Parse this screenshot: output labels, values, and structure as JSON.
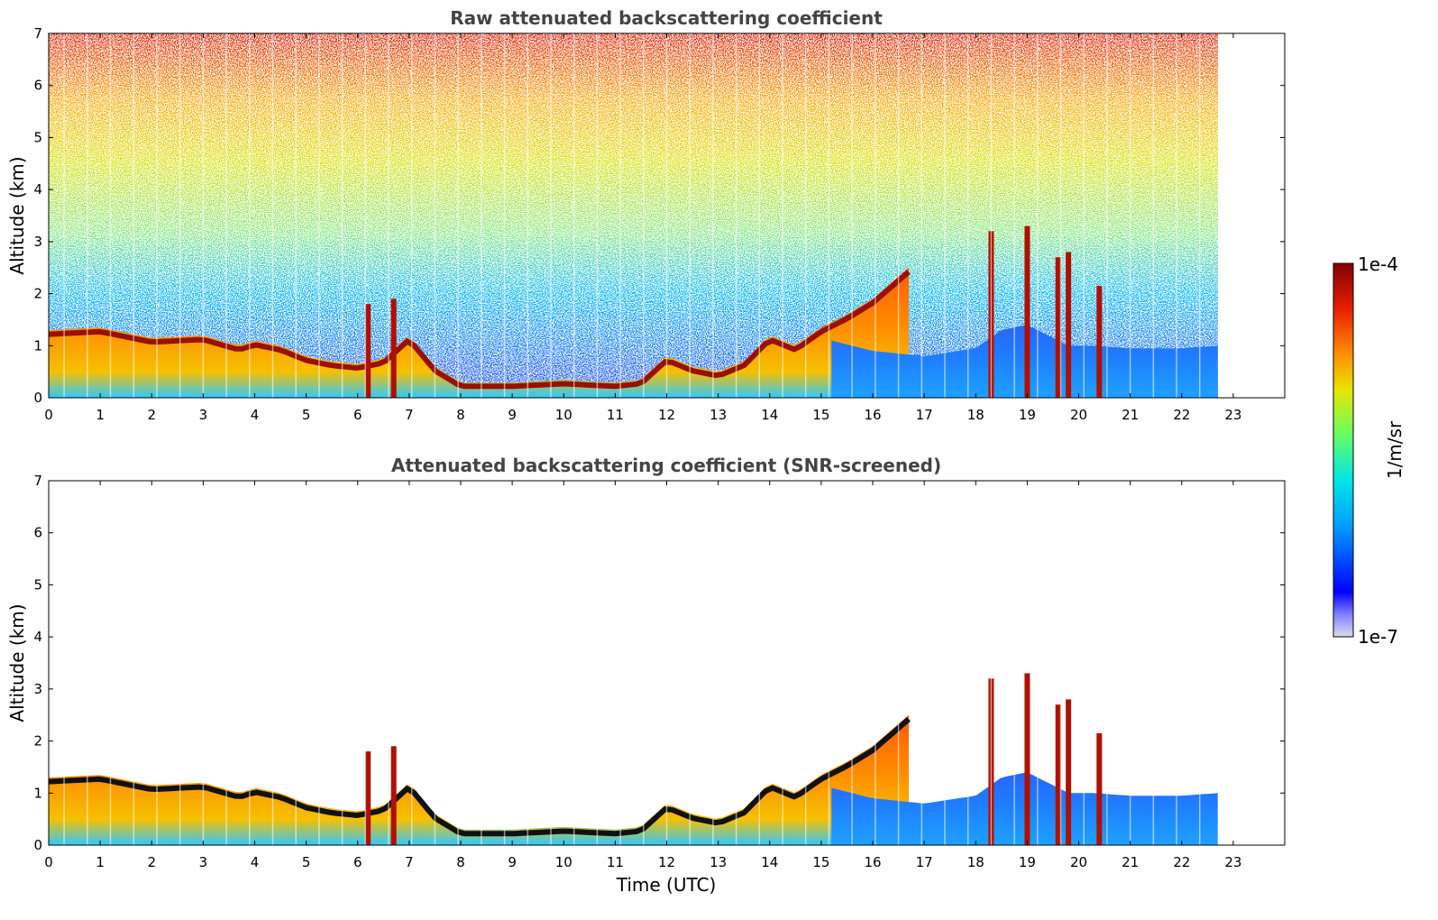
{
  "chart_data": [
    {
      "type": "heatmap",
      "title": "Raw attenuated backscattering coefficient",
      "xlabel": "",
      "ylabel": "Altitude (km)",
      "xlim": [
        0,
        24
      ],
      "ylim": [
        0,
        7
      ],
      "xticks": [
        "0",
        "1",
        "2",
        "3",
        "4",
        "5",
        "6",
        "7",
        "8",
        "9",
        "10",
        "11",
        "12",
        "13",
        "14",
        "15",
        "16",
        "17",
        "18",
        "19",
        "20",
        "21",
        "22",
        "23"
      ],
      "yticks": [
        "0",
        "1",
        "2",
        "3",
        "4",
        "5",
        "6",
        "7"
      ],
      "data_end_time": 22.7,
      "boundary_layer_top_km": [
        {
          "x": 0,
          "y": 1.3
        },
        {
          "x": 1,
          "y": 1.35
        },
        {
          "x": 2,
          "y": 1.15
        },
        {
          "x": 3,
          "y": 1.2
        },
        {
          "x": 3.7,
          "y": 1.0
        },
        {
          "x": 4,
          "y": 1.1
        },
        {
          "x": 4.5,
          "y": 1.0
        },
        {
          "x": 5,
          "y": 0.8
        },
        {
          "x": 5.5,
          "y": 0.7
        },
        {
          "x": 6,
          "y": 0.65
        },
        {
          "x": 6.5,
          "y": 0.75
        },
        {
          "x": 7,
          "y": 1.2
        },
        {
          "x": 7.5,
          "y": 0.6
        },
        {
          "x": 8,
          "y": 0.3
        },
        {
          "x": 9,
          "y": 0.3
        },
        {
          "x": 10,
          "y": 0.35
        },
        {
          "x": 11,
          "y": 0.3
        },
        {
          "x": 11.5,
          "y": 0.35
        },
        {
          "x": 12,
          "y": 0.8
        },
        {
          "x": 12.5,
          "y": 0.6
        },
        {
          "x": 13,
          "y": 0.5
        },
        {
          "x": 13.5,
          "y": 0.7
        },
        {
          "x": 14,
          "y": 1.2
        },
        {
          "x": 14.5,
          "y": 1.0
        },
        {
          "x": 15,
          "y": 1.35
        },
        {
          "x": 15.5,
          "y": 1.6
        },
        {
          "x": 16,
          "y": 1.9
        },
        {
          "x": 16.7,
          "y": 2.5
        }
      ],
      "aerosol_layer_top_km": [
        {
          "x": 15.2,
          "y": 1.1
        },
        {
          "x": 16,
          "y": 0.9
        },
        {
          "x": 17,
          "y": 0.8
        },
        {
          "x": 18,
          "y": 0.95
        },
        {
          "x": 18.5,
          "y": 1.3
        },
        {
          "x": 19,
          "y": 1.4
        },
        {
          "x": 19.8,
          "y": 1.0
        },
        {
          "x": 20.3,
          "y": 1.0
        },
        {
          "x": 21,
          "y": 0.95
        },
        {
          "x": 22,
          "y": 0.95
        },
        {
          "x": 22.7,
          "y": 1.0
        }
      ],
      "plumes": [
        {
          "x": 6.2,
          "y": 1.8
        },
        {
          "x": 6.7,
          "y": 1.9
        },
        {
          "x": 18.3,
          "y": 3.2
        },
        {
          "x": 19.0,
          "y": 3.3
        },
        {
          "x": 19.6,
          "y": 2.7
        },
        {
          "x": 19.8,
          "y": 2.8
        },
        {
          "x": 20.4,
          "y": 2.15
        }
      ]
    },
    {
      "type": "heatmap",
      "title": "Attenuated backscattering coefficient (SNR-screened)",
      "xlabel": "Time (UTC)",
      "ylabel": "Altitude (km)",
      "xlim": [
        0,
        24
      ],
      "ylim": [
        0,
        7
      ],
      "xticks": [
        "0",
        "1",
        "2",
        "3",
        "4",
        "5",
        "6",
        "7",
        "8",
        "9",
        "10",
        "11",
        "12",
        "13",
        "14",
        "15",
        "16",
        "17",
        "18",
        "19",
        "20",
        "21",
        "22",
        "23"
      ],
      "yticks": [
        "0",
        "1",
        "2",
        "3",
        "4",
        "5",
        "6",
        "7"
      ],
      "data_end_time": 22.7
    }
  ],
  "colorbar": {
    "max_label": "1e-4",
    "min_label": "1e-7",
    "label": "1/m/sr",
    "colors": [
      "#dcdcf0",
      "#0000ff",
      "#00a0ff",
      "#00e6e6",
      "#64ff64",
      "#e6e600",
      "#ff8c00",
      "#e61e00",
      "#800000"
    ]
  }
}
